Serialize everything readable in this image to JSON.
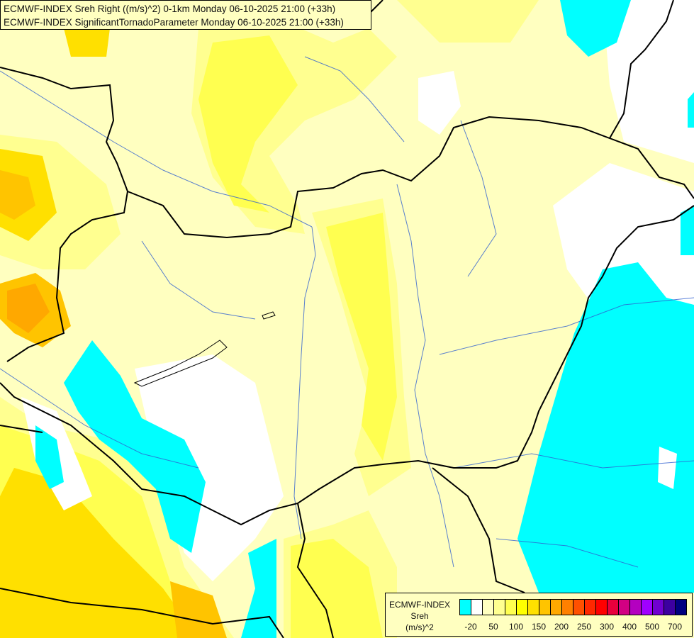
{
  "header": {
    "line1": "ECMWF-INDEX Sreh Right ((m/s)^2) 0-1km Monday 06-10-2025 21:00 (+33h)",
    "line2": "ECMWF-INDEX SignificantTornadoParameter Monday 06-10-2025 21:00 (+33h)"
  },
  "legend": {
    "title": "ECMWF-INDEX",
    "variable": "Sreh",
    "unit": "(m/s)^2",
    "colors": [
      "#00ffff",
      "#ffffff",
      "#ffffc0",
      "#ffff90",
      "#ffff50",
      "#ffff00",
      "#ffe000",
      "#ffc400",
      "#ffa800",
      "#ff8000",
      "#ff5000",
      "#ff2800",
      "#ff0000",
      "#e8003c",
      "#d20082",
      "#b400c0",
      "#a000ff",
      "#7000d0",
      "#3c00a0",
      "#000080"
    ],
    "ticks": [
      "-20",
      "50",
      "100",
      "150",
      "200",
      "250",
      "300",
      "400",
      "500",
      "700"
    ]
  },
  "map": {
    "colors": {
      "background": "#ffffc0",
      "low": "#00ffff",
      "neutral": "#ffffff",
      "light": "#ffff90",
      "mid": "#ffff50",
      "high": "#ffe000",
      "higher": "#ffc400",
      "highest": "#ffa800",
      "border": "#000000",
      "river": "#3060d0"
    }
  }
}
